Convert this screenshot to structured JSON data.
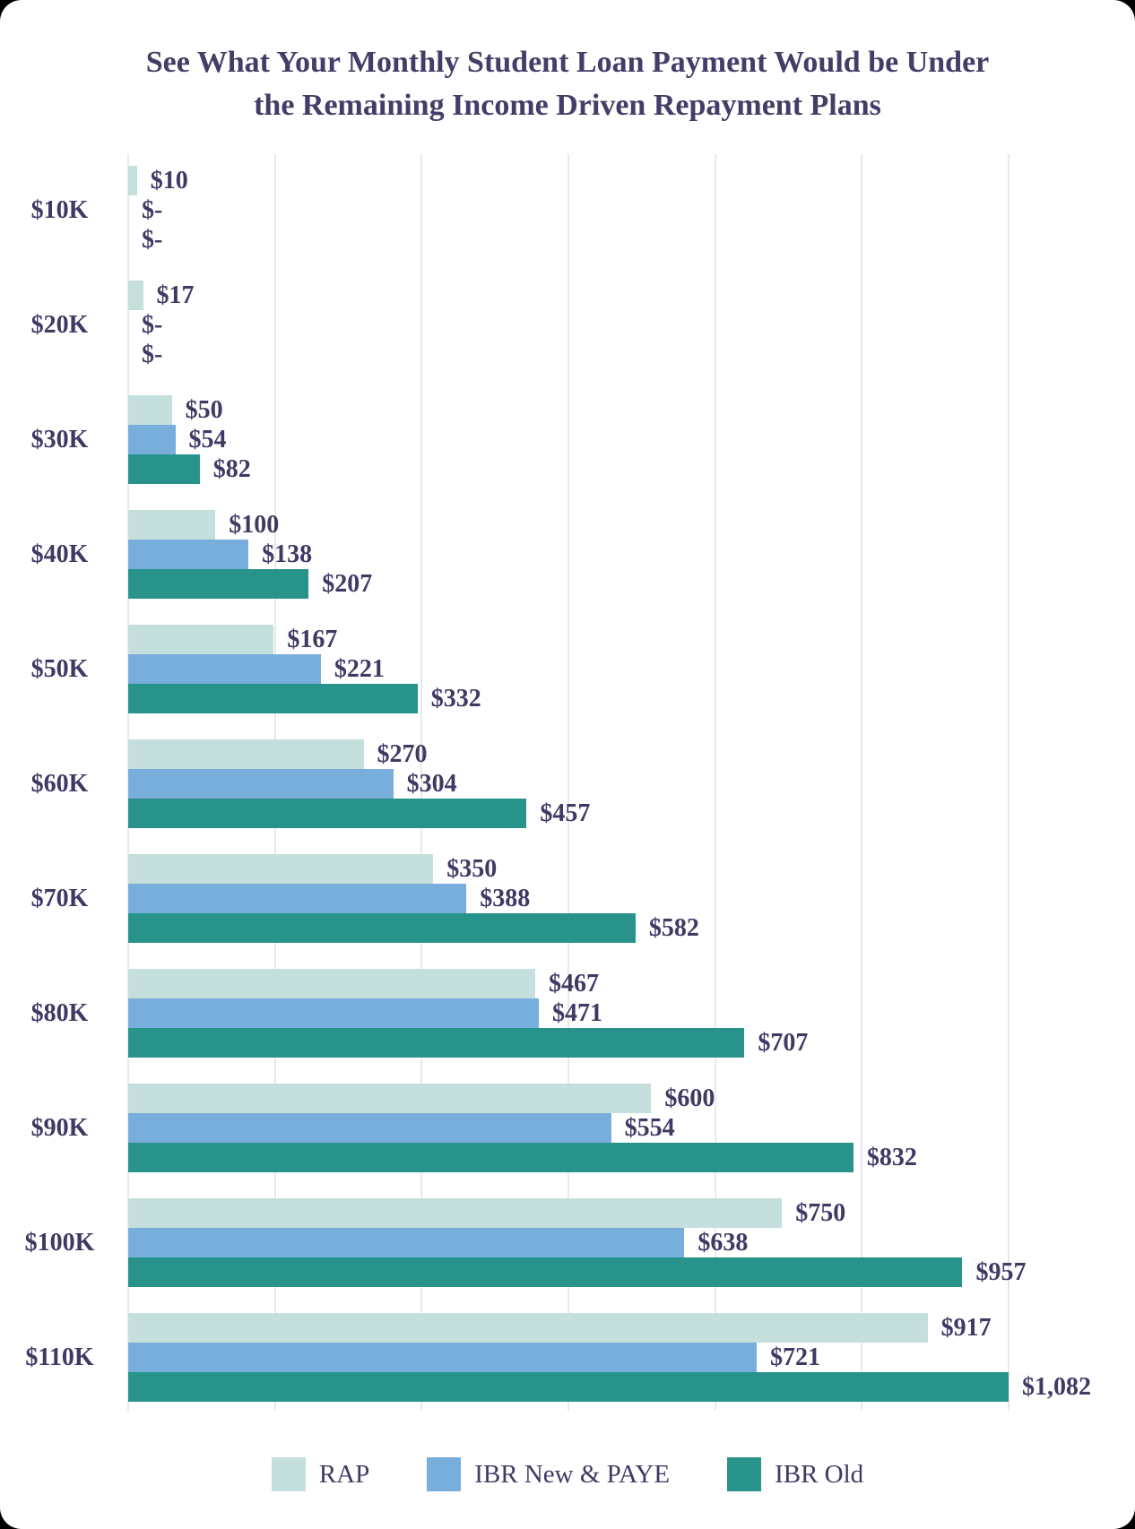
{
  "title": {
    "line1": "See What Your Monthly Student Loan Payment Would be Under",
    "line2": "the Remaining Income Driven Repayment Plans"
  },
  "chart_data": {
    "type": "bar",
    "orientation": "horizontal",
    "title": "See What Your Monthly Student Loan Payment Would be Under the Remaining Income Driven Repayment Plans",
    "categories": [
      "$10K",
      "$20K",
      "$30K",
      "$40K",
      "$50K",
      "$60K",
      "$70K",
      "$80K",
      "$90K",
      "$100K",
      "$110K"
    ],
    "series": [
      {
        "name": "RAP",
        "color": "#c5dfdc",
        "values": [
          10,
          17,
          50,
          100,
          167,
          270,
          350,
          467,
          600,
          750,
          917
        ],
        "labels": [
          "$10",
          "$17",
          "$50",
          "$100",
          "$167",
          "$270",
          "$350",
          "$467",
          "$600",
          "$750",
          "$917"
        ]
      },
      {
        "name": "IBR New & PAYE",
        "color": "#77aedb",
        "values": [
          0,
          0,
          54,
          138,
          221,
          304,
          388,
          471,
          554,
          638,
          721
        ],
        "labels": [
          "$-",
          "$-",
          "$54",
          "$138",
          "$221",
          "$304",
          "$388",
          "$471",
          "$554",
          "$638",
          "$721"
        ]
      },
      {
        "name": "IBR Old",
        "color": "#28938a",
        "values": [
          0,
          0,
          82,
          207,
          332,
          457,
          582,
          707,
          832,
          957,
          1082
        ],
        "labels": [
          "$-",
          "$-",
          "$82",
          "$207",
          "$332",
          "$457",
          "$582",
          "$707",
          "$832",
          "$957",
          "$1,082"
        ]
      }
    ],
    "xlabel": "",
    "ylabel": "",
    "xmax": 1010,
    "gridline_count": 7,
    "grid": "vertical-only",
    "legend_position": "bottom"
  },
  "legend": {
    "items": [
      {
        "label": "RAP",
        "color": "#c5dfdc"
      },
      {
        "label": "IBR New & PAYE",
        "color": "#77aedb"
      },
      {
        "label": "IBR Old",
        "color": "#28938a"
      }
    ]
  },
  "colors": {
    "background": "#ffffff",
    "text": "#3f3a64",
    "title_text": "#433d68",
    "gridline": "#e9e9ed"
  }
}
